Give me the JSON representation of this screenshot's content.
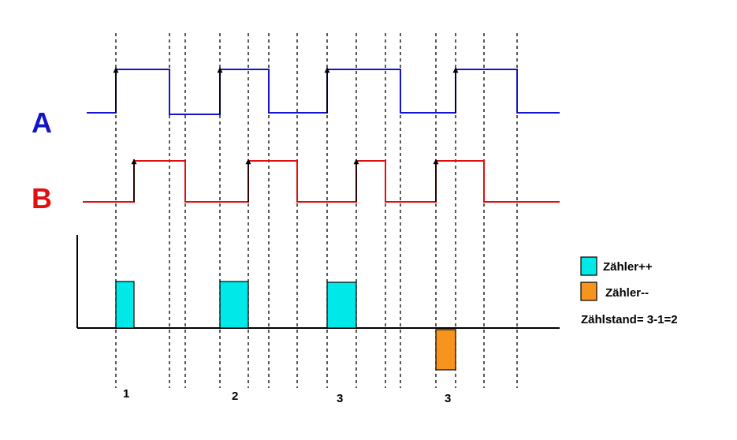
{
  "signals": {
    "a": {
      "label": "A",
      "color": "#1414c8"
    },
    "b": {
      "label": "B",
      "color": "#e01010"
    }
  },
  "counts": [
    "1",
    "2",
    "3",
    "3"
  ],
  "legend": {
    "increment": {
      "label": "Zähler++",
      "color": "#00e8e8"
    },
    "decrement": {
      "label": "Zähler--",
      "color": "#f7941d"
    },
    "total": "Zählstand= 3-1=2"
  }
}
